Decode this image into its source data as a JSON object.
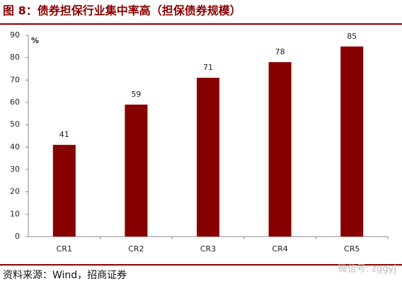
{
  "chart_data": {
    "type": "bar",
    "title": "图 8：债券担保行业集中率高（担保债券规模）",
    "y_unit": "%",
    "categories": [
      "CR1",
      "CR2",
      "CR3",
      "CR4",
      "CR5"
    ],
    "values": [
      41,
      59,
      71,
      78,
      85
    ],
    "color": "#870000",
    "ylim": [
      0,
      90
    ],
    "yticks": [
      0,
      10,
      20,
      30,
      40,
      50,
      60,
      70,
      80,
      90
    ],
    "grid": false,
    "source": "资料来源：Wind，招商证券",
    "watermark": "微信号: zggyj"
  }
}
